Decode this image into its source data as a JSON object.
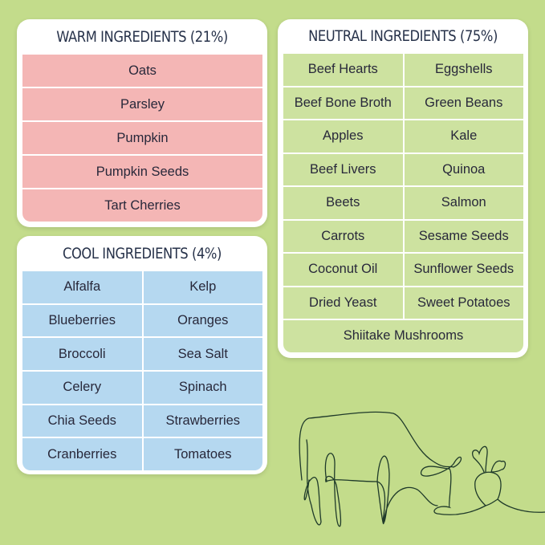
{
  "colors": {
    "background": "#c3dc8b",
    "warm": "#f4b6b5",
    "cool": "#b5d8f0",
    "neutral": "#cde2a0",
    "line_art": "#1f3a2a"
  },
  "warm": {
    "title": "WARM INGREDIENTS (21%)",
    "items": [
      "Oats",
      "Parsley",
      "Pumpkin",
      "Pumpkin Seeds",
      "Tart Cherries"
    ]
  },
  "cool": {
    "title": "COOL INGREDIENTS (4%)",
    "items": [
      "Alfalfa",
      "Kelp",
      "Blueberries",
      "Oranges",
      "Broccoli",
      "Sea Salt",
      "Celery",
      "Spinach",
      "Chia Seeds",
      "Strawberries",
      "Cranberries",
      "Tomatoes"
    ]
  },
  "neutral": {
    "title": "NEUTRAL INGREDIENTS (75%)",
    "items": [
      "Beef Hearts",
      "Eggshells",
      "Beef Bone Broth",
      "Green Beans",
      "Apples",
      "Kale",
      "Beef Livers",
      "Quinoa",
      "Beets",
      "Salmon",
      "Carrots",
      "Sesame Seeds",
      "Coconut Oil",
      "Sunflower Seeds",
      "Dried Yeast",
      "Sweet Potatoes",
      "Shiitake Mushrooms"
    ]
  },
  "illustration": {
    "icons": [
      "cow-line-art-icon",
      "beet-line-art-icon"
    ]
  }
}
